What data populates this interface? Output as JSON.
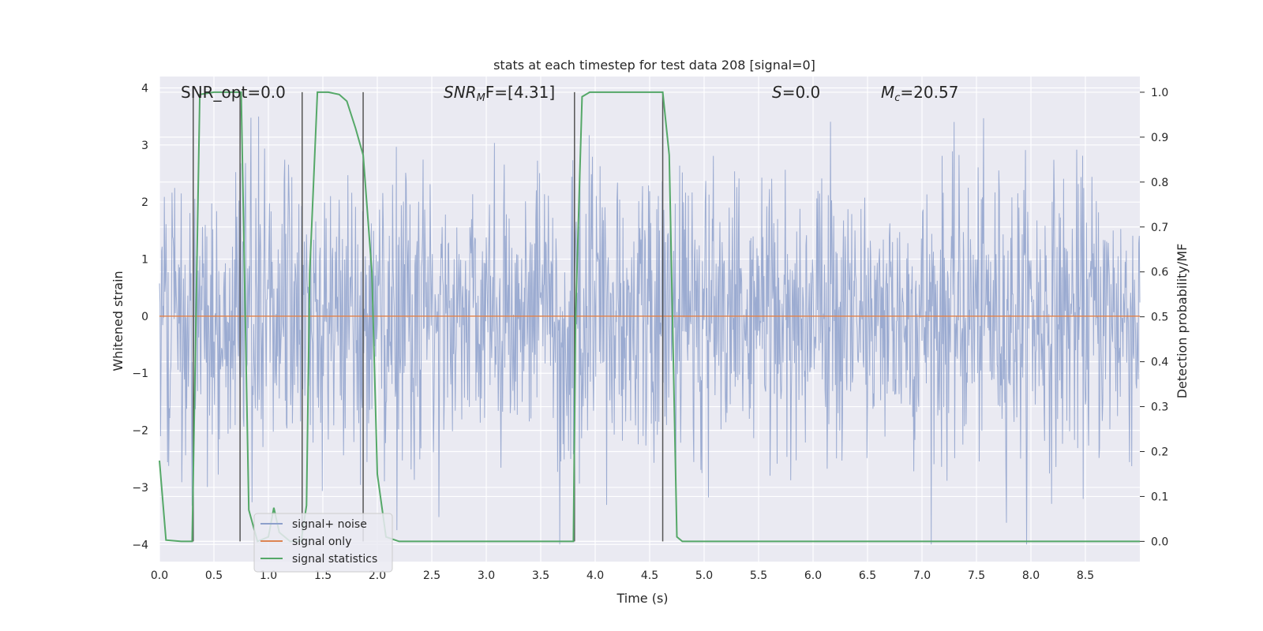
{
  "chart_data": {
    "type": "line",
    "title": "stats at each timestep for test data 208 [signal=0]",
    "xlabel": "Time (s)",
    "ylabel_left": "Whitened strain",
    "ylabel_right": "Detection probability/MF",
    "xlim": [
      0.0,
      9.0
    ],
    "ylim_left": [
      -4.3,
      4.2
    ],
    "ylim_right": [
      -0.045,
      1.035
    ],
    "grid": true,
    "legend_position": "lower-left",
    "xticks": [
      "0.0",
      "0.5",
      "1.0",
      "1.5",
      "2.0",
      "2.5",
      "3.0",
      "3.5",
      "4.0",
      "4.5",
      "5.0",
      "5.5",
      "6.0",
      "6.5",
      "7.0",
      "7.5",
      "8.0",
      "8.5"
    ],
    "yticks_left": [
      "4",
      "3",
      "2",
      "1",
      "0",
      "−1",
      "−2",
      "−3",
      "−4"
    ],
    "yticks_right": [
      "1.0",
      "0.9",
      "0.8",
      "0.7",
      "0.6",
      "0.5",
      "0.4",
      "0.3",
      "0.2",
      "0.1",
      "0.0"
    ],
    "annotations": {
      "snr_opt": "SNR_opt=0.0",
      "snr_mf_label": "SNR",
      "snr_mf_sub": "M",
      "snr_mf_tail": "F=[4.31]",
      "s_label": "S",
      "s_tail": "=0.0",
      "mc_label": "M",
      "mc_sub": "c",
      "mc_tail": "=20.57"
    },
    "legend": [
      "signal+ noise",
      "signal only",
      "signal statistics"
    ],
    "colors": {
      "noise": "#8da0cb",
      "signal_only": "#dd8452",
      "statistics": "#55a868",
      "markers": "#555555",
      "background": "#eaeaf2",
      "grid": "#ffffff"
    },
    "series": [
      {
        "name": "signal+ noise",
        "axis": "left",
        "description_level": "noise",
        "amplitude_range": [
          -4.0,
          3.9
        ],
        "sample_rate_hz": 200
      },
      {
        "name": "signal only",
        "axis": "left",
        "x": [
          0.0,
          9.0
        ],
        "y": [
          0.0,
          0.0
        ]
      },
      {
        "name": "signal statistics",
        "axis": "right",
        "x": [
          0.0,
          0.06,
          0.2,
          0.3,
          0.37,
          0.5,
          0.6,
          0.7,
          0.75,
          0.82,
          0.9,
          1.0,
          1.05,
          1.1,
          1.2,
          1.3,
          1.35,
          1.38,
          1.45,
          1.55,
          1.65,
          1.72,
          1.8,
          1.87,
          1.95,
          2.0,
          2.08,
          2.2,
          2.5,
          3.0,
          3.5,
          3.8,
          3.82,
          3.88,
          3.95,
          4.05,
          4.5,
          4.62,
          4.68,
          4.75,
          4.8,
          5.0,
          6.0,
          7.0,
          8.0,
          9.0
        ],
        "y": [
          0.18,
          0.003,
          0.0,
          0.0,
          0.995,
          1.0,
          1.0,
          1.0,
          1.0,
          0.07,
          0.0,
          0.01,
          0.075,
          0.02,
          0.0,
          0.0,
          0.08,
          0.6,
          1.0,
          1.0,
          0.995,
          0.98,
          0.92,
          0.86,
          0.6,
          0.15,
          0.01,
          0.0,
          0.0,
          0.0,
          0.0,
          0.0,
          0.5,
          0.99,
          1.0,
          1.0,
          1.0,
          1.0,
          0.86,
          0.01,
          0.0,
          0.0,
          0.0,
          0.0,
          0.0,
          0.0
        ]
      }
    ],
    "vertical_markers": [
      {
        "x": 0.31,
        "y_top": 1.0,
        "y_bottom": 0.0
      },
      {
        "x": 0.74,
        "y_top": 1.0,
        "y_bottom": 0.0
      },
      {
        "x": 1.31,
        "y_top": 1.0,
        "y_bottom": 0.0
      },
      {
        "x": 1.87,
        "y_top": 1.0,
        "y_bottom": 0.0
      },
      {
        "x": 3.81,
        "y_top": 1.0,
        "y_bottom": 0.0
      },
      {
        "x": 4.62,
        "y_top": 1.0,
        "y_bottom": 0.0
      }
    ]
  }
}
